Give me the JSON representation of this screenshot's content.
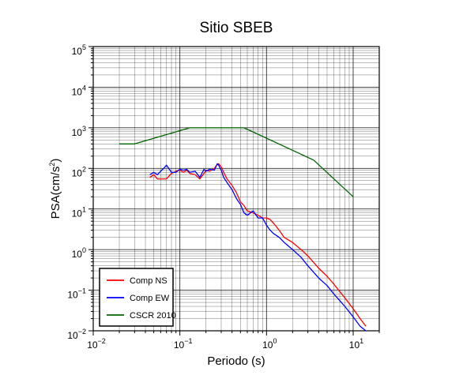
{
  "chart_data": {
    "type": "line",
    "title": "Sitio SBEB",
    "xlabel": "Periodo (s)",
    "ylabel_base": "PSA(cm/s",
    "ylabel_exp": "2",
    "ylabel_tail": ")",
    "xscale": "log",
    "yscale": "log",
    "xlim": [
      0.01,
      20
    ],
    "ylim": [
      0.01,
      100000
    ],
    "grid": true,
    "legend_position": "bottom-left",
    "x_ticks": [
      {
        "value": 0.01,
        "base": "10",
        "exp": "−2"
      },
      {
        "value": 0.1,
        "base": "10",
        "exp": "−1"
      },
      {
        "value": 1,
        "base": "10",
        "exp": "0"
      },
      {
        "value": 10,
        "base": "10",
        "exp": "1"
      }
    ],
    "y_ticks": [
      {
        "value": 0.01,
        "base": "10",
        "exp": "−2"
      },
      {
        "value": 0.1,
        "base": "10",
        "exp": "−1"
      },
      {
        "value": 1,
        "base": "10",
        "exp": "0"
      },
      {
        "value": 10,
        "base": "10",
        "exp": "1"
      },
      {
        "value": 100,
        "base": "10",
        "exp": "2"
      },
      {
        "value": 1000,
        "base": "10",
        "exp": "3"
      },
      {
        "value": 10000,
        "base": "10",
        "exp": "4"
      },
      {
        "value": 100000,
        "base": "10",
        "exp": "5"
      }
    ],
    "series": [
      {
        "name": "Comp NS",
        "color": "#ff0000",
        "x": [
          0.045,
          0.05,
          0.055,
          0.06,
          0.07,
          0.08,
          0.09,
          0.1,
          0.11,
          0.12,
          0.13,
          0.15,
          0.17,
          0.19,
          0.2,
          0.22,
          0.25,
          0.27,
          0.28,
          0.3,
          0.32,
          0.35,
          0.4,
          0.45,
          0.5,
          0.55,
          0.6,
          0.7,
          0.8,
          0.9,
          1.0,
          1.1,
          1.2,
          1.4,
          1.6,
          2.0,
          2.5,
          3.0,
          4.0,
          5.0,
          6.0,
          8.0,
          10.0,
          12.0,
          14.0
        ],
        "y": [
          60,
          70,
          55,
          55,
          55,
          75,
          85,
          90,
          80,
          90,
          75,
          70,
          55,
          75,
          90,
          85,
          100,
          125,
          130,
          110,
          80,
          55,
          38,
          25,
          15,
          12,
          9,
          8,
          7,
          6,
          6,
          5.5,
          4.5,
          3,
          2,
          1.5,
          1.0,
          0.7,
          0.35,
          0.22,
          0.14,
          0.065,
          0.035,
          0.02,
          0.013
        ]
      },
      {
        "name": "Comp EW",
        "color": "#0000ff",
        "x": [
          0.045,
          0.05,
          0.055,
          0.06,
          0.065,
          0.07,
          0.08,
          0.09,
          0.1,
          0.11,
          0.12,
          0.13,
          0.15,
          0.17,
          0.19,
          0.2,
          0.22,
          0.25,
          0.27,
          0.28,
          0.3,
          0.32,
          0.35,
          0.4,
          0.45,
          0.5,
          0.55,
          0.6,
          0.7,
          0.8,
          0.9,
          1.0,
          1.1,
          1.2,
          1.4,
          1.6,
          2.0,
          2.5,
          3.0,
          4.0,
          5.0,
          6.0,
          8.0,
          10.0,
          12.0,
          14.0
        ],
        "y": [
          70,
          80,
          70,
          85,
          100,
          120,
          80,
          80,
          95,
          90,
          95,
          80,
          85,
          60,
          95,
          85,
          95,
          90,
          130,
          120,
          90,
          60,
          45,
          30,
          18,
          13,
          8,
          7,
          9,
          6,
          6,
          4,
          3,
          2.5,
          2,
          1.5,
          1.0,
          0.65,
          0.4,
          0.2,
          0.13,
          0.08,
          0.04,
          0.022,
          0.013,
          0.01
        ]
      },
      {
        "name": "CSCR 2010",
        "color": "#006400",
        "x": [
          0.02,
          0.03,
          0.13,
          0.55,
          3.5,
          10.0
        ],
        "y": [
          400,
          400,
          1000,
          1000,
          160,
          20
        ]
      }
    ]
  }
}
